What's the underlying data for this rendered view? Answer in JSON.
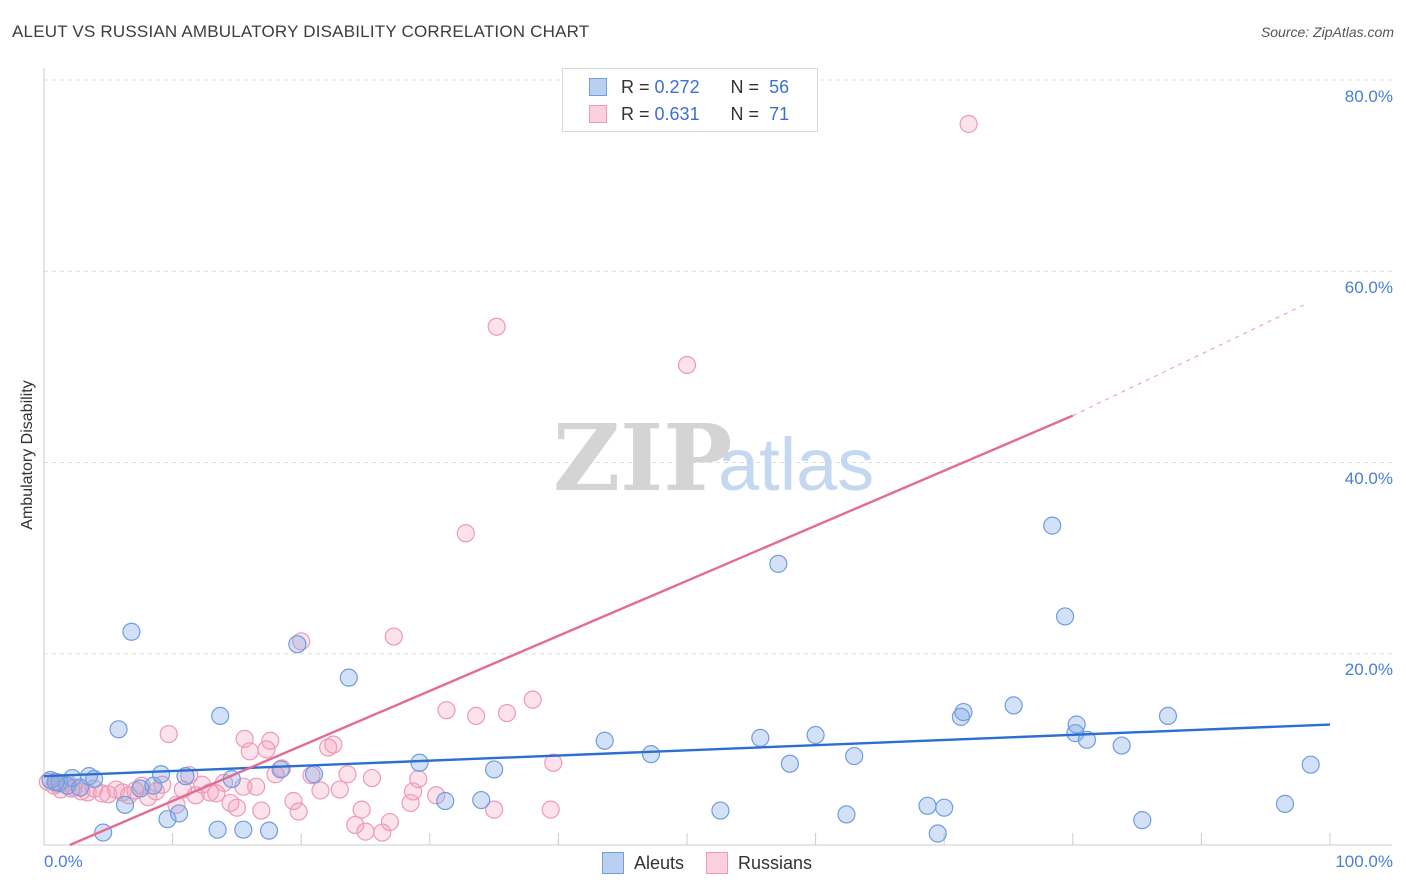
{
  "title": "ALEUT VS RUSSIAN AMBULATORY DISABILITY CORRELATION CHART",
  "source": "Source: ZipAtlas.com",
  "watermark": {
    "zip": "ZIP",
    "atlas": "atlas"
  },
  "colors": {
    "aleut_fill": "rgba(130,170,230,0.35)",
    "aleut_stroke": "#6f9de0",
    "aleut_line": "#2d6fd1",
    "russian_fill": "rgba(245,160,190,0.30)",
    "russian_stroke": "#ee9ab5",
    "russian_line": "#e36b95",
    "tick_text": "#4a7fd4",
    "grid": "#dddddd"
  },
  "legend": {
    "rows": [
      {
        "r_label": "R =",
        "r_value": "0.272",
        "n_label": "N =",
        "n_value": "56"
      },
      {
        "r_label": "R =",
        "r_value": "0.631",
        "n_label": "N =",
        "n_value": "71"
      }
    ]
  },
  "bottom_legend": {
    "aleuts": "Aleuts",
    "russians": "Russians"
  },
  "chart_data": {
    "type": "scatter",
    "title": "ALEUT VS RUSSIAN AMBULATORY DISABILITY CORRELATION CHART",
    "xlabel": "",
    "ylabel": "Ambulatory Disability",
    "xlim": [
      0,
      100
    ],
    "ylim": [
      0,
      82
    ],
    "y_ticks": [
      "80.0%",
      "60.0%",
      "40.0%",
      "20.0%"
    ],
    "x_tick_labels": [
      "0.0%",
      "100.0%"
    ],
    "grid": true,
    "legend_position": "top-center",
    "series": [
      {
        "name": "Aleuts",
        "r": 0.272,
        "n": 56,
        "trend": {
          "x": [
            0,
            100
          ],
          "y": [
            7.2,
            12.6
          ]
        },
        "points": [
          [
            0.5,
            6.8
          ],
          [
            1.2,
            6.5
          ],
          [
            1.8,
            6.2
          ],
          [
            2.2,
            7.0
          ],
          [
            2.8,
            6.0
          ],
          [
            3.5,
            7.2
          ],
          [
            3.9,
            6.9
          ],
          [
            4.6,
            1.3
          ],
          [
            5.8,
            12.1
          ],
          [
            6.3,
            4.2
          ],
          [
            6.8,
            22.3
          ],
          [
            7.5,
            5.9
          ],
          [
            8.5,
            6.2
          ],
          [
            9.1,
            7.4
          ],
          [
            9.6,
            2.7
          ],
          [
            10.5,
            3.3
          ],
          [
            11.0,
            7.2
          ],
          [
            13.5,
            1.6
          ],
          [
            13.7,
            13.5
          ],
          [
            14.6,
            6.9
          ],
          [
            15.5,
            1.6
          ],
          [
            17.5,
            1.5
          ],
          [
            18.4,
            7.9
          ],
          [
            19.7,
            21.0
          ],
          [
            21.0,
            7.4
          ],
          [
            23.7,
            17.5
          ],
          [
            29.2,
            8.6
          ],
          [
            31.2,
            4.6
          ],
          [
            34.0,
            4.7
          ],
          [
            35.0,
            7.9
          ],
          [
            43.6,
            10.9
          ],
          [
            47.2,
            9.5
          ],
          [
            52.6,
            3.6
          ],
          [
            55.7,
            11.2
          ],
          [
            57.1,
            29.4
          ],
          [
            58.0,
            8.5
          ],
          [
            60.0,
            11.5
          ],
          [
            62.4,
            3.2
          ],
          [
            63.0,
            9.3
          ],
          [
            68.7,
            4.1
          ],
          [
            69.5,
            1.2
          ],
          [
            70.0,
            3.9
          ],
          [
            71.3,
            13.4
          ],
          [
            71.5,
            13.9
          ],
          [
            75.4,
            14.6
          ],
          [
            78.4,
            33.4
          ],
          [
            79.4,
            23.9
          ],
          [
            80.2,
            11.7
          ],
          [
            80.3,
            12.6
          ],
          [
            81.1,
            11.0
          ],
          [
            83.8,
            10.4
          ],
          [
            85.4,
            2.6
          ],
          [
            87.4,
            13.5
          ],
          [
            96.5,
            4.3
          ],
          [
            98.5,
            8.4
          ],
          [
            0.9,
            6.6
          ]
        ]
      },
      {
        "name": "Russians",
        "r": 0.631,
        "n": 71,
        "trend": {
          "x": [
            2,
            80
          ],
          "y": [
            0,
            44.9
          ]
        },
        "trend_dashed": {
          "x": [
            80,
            98
          ],
          "y": [
            44.9,
            56.5
          ]
        },
        "points": [
          [
            0.3,
            6.6
          ],
          [
            0.8,
            6.2
          ],
          [
            1.3,
            5.8
          ],
          [
            1.8,
            6.5
          ],
          [
            2.3,
            6.0
          ],
          [
            2.9,
            5.6
          ],
          [
            3.4,
            5.5
          ],
          [
            3.9,
            5.9
          ],
          [
            4.5,
            5.4
          ],
          [
            5.0,
            5.3
          ],
          [
            5.6,
            5.8
          ],
          [
            6.1,
            5.5
          ],
          [
            6.6,
            5.2
          ],
          [
            7.1,
            5.7
          ],
          [
            7.6,
            6.2
          ],
          [
            8.1,
            5.0
          ],
          [
            8.7,
            5.6
          ],
          [
            9.2,
            6.3
          ],
          [
            9.7,
            11.6
          ],
          [
            10.3,
            4.2
          ],
          [
            10.8,
            5.8
          ],
          [
            11.3,
            7.3
          ],
          [
            11.8,
            5.2
          ],
          [
            12.3,
            6.3
          ],
          [
            12.9,
            5.5
          ],
          [
            13.4,
            5.4
          ],
          [
            14.0,
            6.5
          ],
          [
            14.5,
            4.4
          ],
          [
            15.0,
            3.9
          ],
          [
            15.5,
            6.1
          ],
          [
            15.6,
            11.1
          ],
          [
            16.0,
            9.8
          ],
          [
            16.5,
            6.1
          ],
          [
            16.9,
            3.6
          ],
          [
            17.3,
            10.0
          ],
          [
            17.6,
            10.9
          ],
          [
            18.0,
            7.4
          ],
          [
            18.5,
            8.0
          ],
          [
            19.4,
            4.6
          ],
          [
            19.8,
            3.5
          ],
          [
            20.0,
            21.3
          ],
          [
            20.8,
            7.3
          ],
          [
            21.5,
            5.7
          ],
          [
            22.1,
            10.2
          ],
          [
            22.5,
            10.5
          ],
          [
            23.0,
            5.8
          ],
          [
            23.6,
            7.4
          ],
          [
            24.2,
            2.1
          ],
          [
            24.7,
            3.7
          ],
          [
            25.0,
            1.4
          ],
          [
            25.5,
            7.0
          ],
          [
            26.3,
            1.3
          ],
          [
            26.9,
            2.4
          ],
          [
            27.2,
            21.8
          ],
          [
            28.5,
            4.4
          ],
          [
            28.7,
            5.6
          ],
          [
            29.1,
            6.9
          ],
          [
            30.5,
            5.2
          ],
          [
            31.3,
            14.1
          ],
          [
            32.8,
            32.6
          ],
          [
            33.6,
            13.5
          ],
          [
            35.0,
            3.7
          ],
          [
            35.2,
            54.2
          ],
          [
            36.0,
            13.8
          ],
          [
            38.0,
            15.2
          ],
          [
            39.4,
            3.7
          ],
          [
            39.6,
            8.6
          ],
          [
            50.0,
            50.2
          ],
          [
            71.9,
            75.4
          ],
          [
            1.0,
            6.4
          ],
          [
            2.1,
            5.9
          ]
        ]
      }
    ]
  }
}
